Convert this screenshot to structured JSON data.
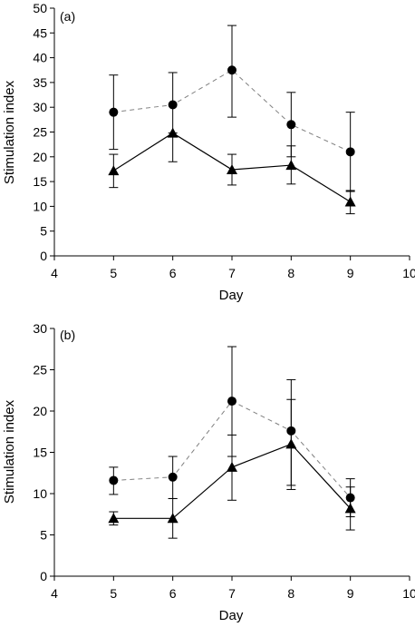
{
  "chart_data": [
    {
      "type": "line",
      "panel_label": "(a)",
      "xlabel": "Day",
      "ylabel": "Stimulation index",
      "xlim": [
        4,
        10
      ],
      "ylim": [
        0,
        50
      ],
      "xticks": [
        4,
        5,
        6,
        7,
        8,
        9,
        10
      ],
      "yticks": [
        0,
        5,
        10,
        15,
        20,
        25,
        30,
        35,
        40,
        45,
        50
      ],
      "grid": false,
      "legend": "none",
      "series": [
        {
          "marker": "circle",
          "line_style": "dashed",
          "color": "#808080",
          "x": [
            5,
            6,
            7,
            8,
            9
          ],
          "y": [
            29.0,
            30.5,
            37.5,
            26.5,
            21.0
          ],
          "err_low": [
            21.5,
            24.0,
            28.0,
            20.0,
            13.0
          ],
          "err_high": [
            36.5,
            37.0,
            46.5,
            33.0,
            29.0
          ]
        },
        {
          "marker": "triangle",
          "line_style": "solid",
          "color": "#000000",
          "x": [
            5,
            6,
            7,
            8,
            9
          ],
          "y": [
            17.2,
            24.8,
            17.4,
            18.3,
            10.9
          ],
          "err_low": [
            13.8,
            19.0,
            14.3,
            14.5,
            8.5
          ],
          "err_high": [
            20.5,
            24.8,
            20.5,
            22.2,
            13.2
          ]
        }
      ]
    },
    {
      "type": "line",
      "panel_label": "(b)",
      "xlabel": "Day",
      "ylabel": "Stimulation index",
      "xlim": [
        4,
        10
      ],
      "ylim": [
        0,
        30
      ],
      "xticks": [
        4,
        5,
        6,
        7,
        8,
        9,
        10
      ],
      "yticks": [
        0,
        5,
        10,
        15,
        20,
        25,
        30
      ],
      "grid": false,
      "legend": "none",
      "series": [
        {
          "marker": "circle",
          "line_style": "dashed",
          "color": "#808080",
          "x": [
            5,
            6,
            7,
            8,
            9
          ],
          "y": [
            11.6,
            12.0,
            21.2,
            17.6,
            9.5
          ],
          "err_low": [
            9.9,
            9.4,
            14.5,
            11.0,
            7.2
          ],
          "err_high": [
            13.2,
            14.5,
            27.8,
            23.8,
            11.8
          ]
        },
        {
          "marker": "triangle",
          "line_style": "solid",
          "color": "#000000",
          "x": [
            5,
            6,
            7,
            8,
            9
          ],
          "y": [
            7.0,
            7.0,
            13.2,
            16.0,
            8.2
          ],
          "err_low": [
            6.2,
            4.6,
            9.2,
            10.5,
            5.6
          ],
          "err_high": [
            7.8,
            9.4,
            17.1,
            21.4,
            10.8
          ]
        }
      ]
    }
  ]
}
